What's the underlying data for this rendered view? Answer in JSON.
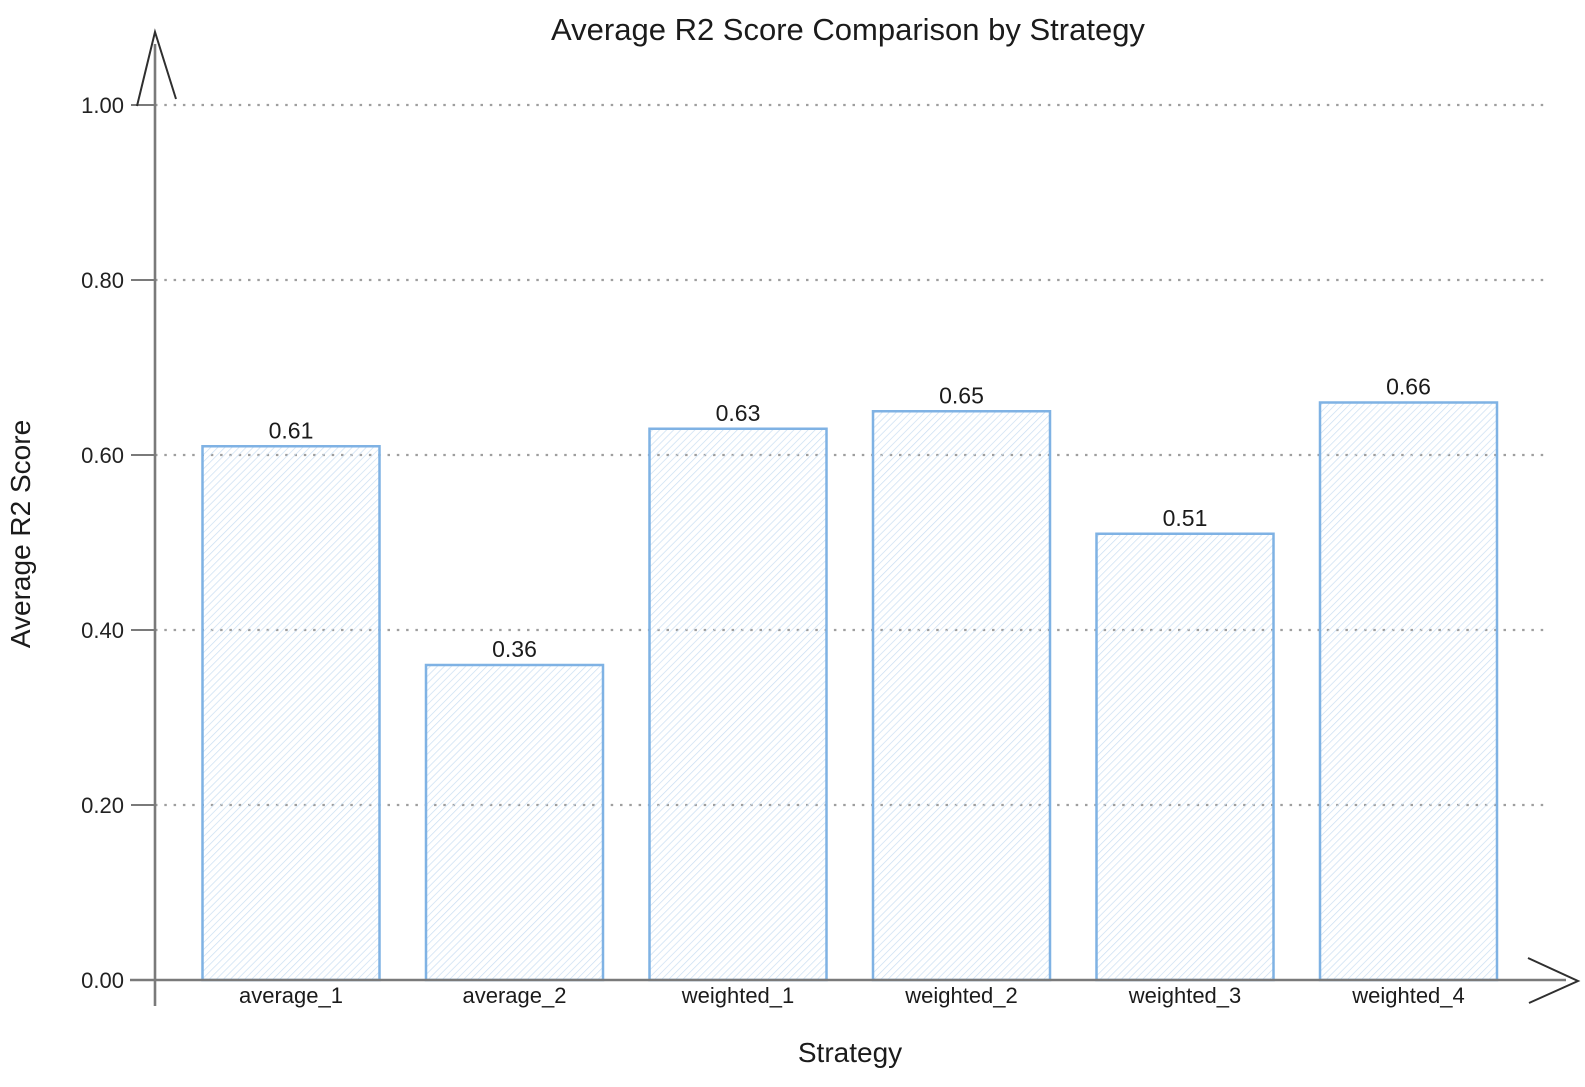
{
  "chart_data": {
    "type": "bar",
    "title": "Average R2 Score Comparison by Strategy",
    "xlabel": "Strategy",
    "ylabel": "Average R2 Score",
    "categories": [
      "average_1",
      "average_2",
      "weighted_1",
      "weighted_2",
      "weighted_3",
      "weighted_4"
    ],
    "values": [
      0.61,
      0.36,
      0.63,
      0.65,
      0.51,
      0.66
    ],
    "bar_labels": [
      "0.61",
      "0.36",
      "0.63",
      "0.65",
      "0.51",
      "0.66"
    ],
    "yticks": [
      0.0,
      0.2,
      0.4,
      0.6,
      0.8,
      1.0
    ],
    "ytick_labels": [
      "0.00",
      "0.20",
      "0.40",
      "0.60",
      "0.80",
      "1.00"
    ],
    "ylim": [
      0,
      1.05
    ],
    "grid": "horizontal-dotted",
    "legend": "none",
    "bar_style": "diagonal-hatch",
    "colors": {
      "bar_border": "#7fb2e4",
      "bar_hatch": "#c9def2",
      "bar_fill": "#ffffff",
      "axis": "#7a7a7a",
      "gridline": "#9e9e9e",
      "arrow": "#2f2f2f",
      "text": "#1b1b1b",
      "background": "#ffffff"
    }
  }
}
